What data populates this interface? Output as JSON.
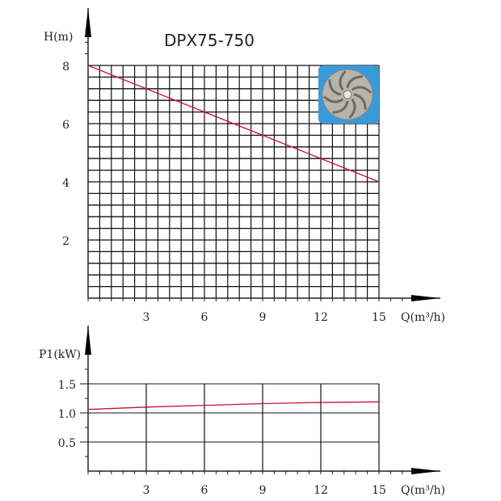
{
  "chart_data": [
    {
      "type": "line",
      "title": "DPX75-750",
      "xlabel": "Q(m³/h)",
      "ylabel": "H(m)",
      "xlim": [
        0,
        15
      ],
      "ylim": [
        0,
        8
      ],
      "x_ticks": [
        "3",
        "6",
        "9",
        "12",
        "15"
      ],
      "y_ticks": [
        "2",
        "4",
        "6",
        "8"
      ],
      "grid": true,
      "series": [
        {
          "x": [
            0,
            15
          ],
          "y": [
            8,
            4
          ],
          "color": "#c8102e"
        }
      ],
      "inset_image": "impeller-photo",
      "inset_background": "#3a9ad9"
    },
    {
      "type": "line",
      "xlabel": "Q(m³/h)",
      "ylabel": "P1(kW)",
      "xlim": [
        0,
        15
      ],
      "ylim": [
        0,
        1.5
      ],
      "x_ticks": [
        "3",
        "6",
        "9",
        "12",
        "15"
      ],
      "y_ticks": [
        "0.5",
        "1.0",
        "1.5"
      ],
      "grid": true,
      "series": [
        {
          "x": [
            0,
            3,
            6,
            9,
            12,
            15
          ],
          "y": [
            1.06,
            1.1,
            1.13,
            1.16,
            1.18,
            1.19
          ],
          "color": "#c8102e"
        }
      ]
    }
  ]
}
